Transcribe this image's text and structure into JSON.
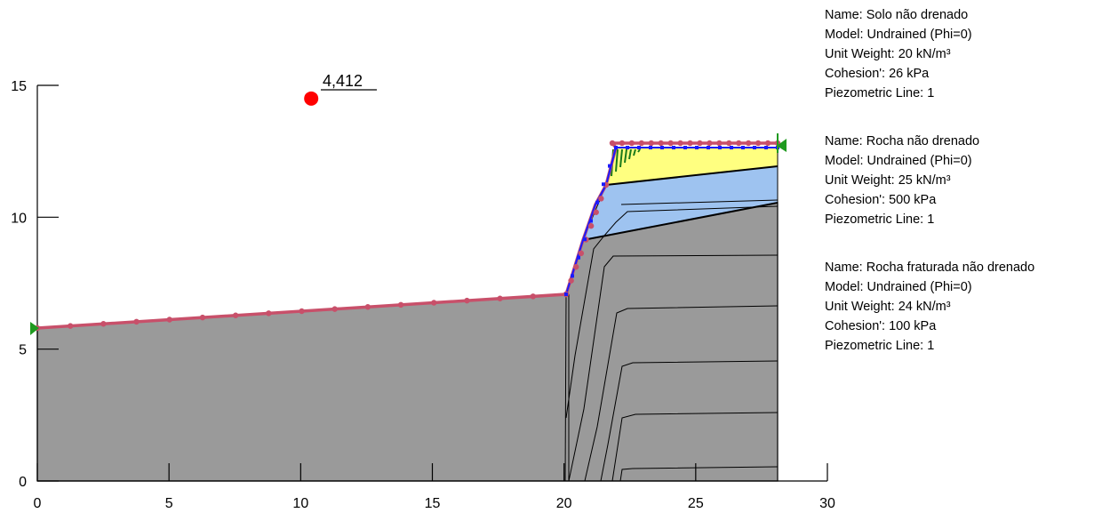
{
  "diagram": {
    "x_axis": {
      "min": 0,
      "max": 30,
      "ticks": [
        "0",
        "5",
        "10",
        "15",
        "20",
        "25",
        "30"
      ]
    },
    "y_axis": {
      "min": 0,
      "max": 15,
      "ticks": [
        "0",
        "5",
        "10",
        "15"
      ]
    },
    "factor_of_safety": {
      "label": "4,412",
      "center": [
        10.4,
        14.5
      ]
    },
    "colors": {
      "rock": "#9a9a9a",
      "weak_rock": "#9ec3f0",
      "soil": "#ffff80",
      "slip": "#c8506a",
      "search": "#1a1aff",
      "wedge": "#1a7a1a",
      "center_dot": "#ff0000",
      "marker": "#1f9a1f"
    },
    "materials": [
      {
        "name_line": "Name: Solo não drenado",
        "model_line": "Model: Undrained (Phi=0)",
        "weight_line": "Unit Weight: 20 kN/m³",
        "cohesion_line": "Cohesion': 26 kPa",
        "piezo_line": "Piezometric Line: 1"
      },
      {
        "name_line": "Name: Rocha não drenado",
        "model_line": "Model: Undrained (Phi=0)",
        "weight_line": "Unit Weight: 25 kN/m³",
        "cohesion_line": "Cohesion': 500 kPa",
        "piezo_line": "Piezometric Line: 1"
      },
      {
        "name_line": "Name: Rocha fraturada não drenado",
        "model_line": "Model: Undrained (Phi=0)",
        "weight_line": "Unit Weight: 24 kN/m³",
        "cohesion_line": "Cohesion': 100 kPa",
        "piezo_line": "Piezometric Line: 1"
      }
    ]
  }
}
